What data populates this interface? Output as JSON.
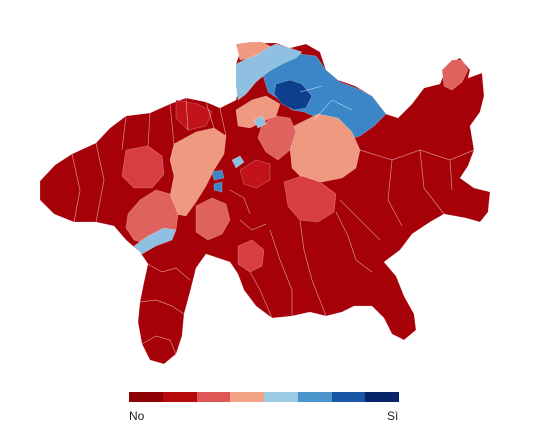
{
  "legend": {
    "low_label": "No",
    "high_label": "Sì",
    "colors": [
      "#8c0004",
      "#b70a0c",
      "#de5656",
      "#f3a383",
      "#9ccae4",
      "#4b94cc",
      "#1a56a6",
      "#08246b"
    ]
  },
  "map": {
    "palette": {
      "dark_red": "#a60008",
      "red": "#c2121a",
      "mid_red": "#d93d44",
      "light_red": "#e0625e",
      "salmon": "#ef9a80",
      "light_blue": "#8fc0e2",
      "mid_blue": "#3a86c6",
      "blue": "#1b66b0",
      "dark_blue": "#0d3f8e"
    }
  }
}
